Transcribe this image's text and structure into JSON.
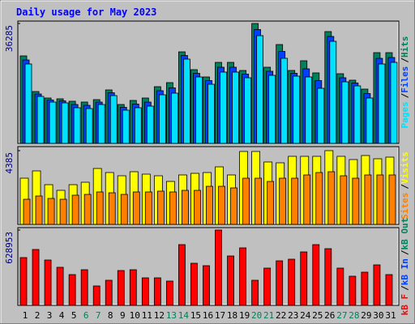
{
  "chart_data": [
    {
      "type": "bar",
      "title": "Daily usage for May 2023",
      "separator": "/",
      "ylim": [
        0,
        36285
      ],
      "yticks": [
        36285
      ],
      "series": [
        {
          "name": "Hits",
          "color": "#00805c",
          "values": [
            26478,
            15691,
            13730,
            13484,
            12749,
            12504,
            13239,
            16181,
            11768,
            12994,
            13730,
            17162,
            18388,
            27704,
            22310,
            20104,
            24517,
            24517,
            22065,
            36285,
            23046,
            29911,
            22065,
            25007,
            21330,
            33833,
            21085,
            19123,
            16426,
            27459,
            27459
          ]
        },
        {
          "name": "Files",
          "color": "#0040ff",
          "values": [
            25250,
            14950,
            13120,
            12870,
            11770,
            11520,
            12500,
            15320,
            10910,
            11890,
            12500,
            15940,
            16790,
            26600,
            21200,
            19000,
            23050,
            23050,
            20960,
            34450,
            21820,
            27830,
            21210,
            22560,
            19000,
            32360,
            19860,
            18270,
            15080,
            25740,
            25990
          ]
        },
        {
          "name": "Pages",
          "color": "#00e0ff",
          "values": [
            24027,
            14220,
            12504,
            12259,
            10787,
            10542,
            11768,
            14465,
            10052,
            10787,
            11278,
            14710,
            15201,
            25498,
            20104,
            17897,
            21575,
            21575,
            19859,
            32608,
            20594,
            25743,
            20349,
            20104,
            16672,
            30891,
            18633,
            17407,
            13730,
            24027,
            24517
          ]
        }
      ]
    },
    {
      "type": "bar",
      "separator": "/",
      "ylim": [
        0,
        4385
      ],
      "yticks": [
        4385
      ],
      "series": [
        {
          "name": "Visits",
          "color": "#ffff00",
          "values": [
            2747,
            3181,
            2361,
            2024,
            2361,
            2506,
            3325,
            3084,
            2891,
            3132,
            2988,
            2891,
            2554,
            2940,
            3036,
            3084,
            3421,
            2940,
            4337,
            4337,
            3711,
            3662,
            4048,
            4048,
            4048,
            4385,
            4048,
            3855,
            4096,
            3903,
            4000
          ]
        },
        {
          "name": "Sites",
          "color": "#ff8000",
          "values": [
            1494,
            1687,
            1542,
            1494,
            1735,
            1783,
            1928,
            1879,
            1783,
            1928,
            1928,
            1976,
            1928,
            2024,
            2024,
            2265,
            2265,
            2169,
            2747,
            2747,
            2554,
            2747,
            2747,
            2940,
            3084,
            3132,
            2891,
            2747,
            2940,
            2940,
            2940
          ]
        }
      ]
    },
    {
      "type": "bar",
      "separator": "/",
      "ylim": [
        0,
        628953
      ],
      "yticks": [
        628953
      ],
      "categories": [
        "1",
        "2",
        "3",
        "4",
        "5",
        "6",
        "7",
        "8",
        "9",
        "10",
        "11",
        "12",
        "13",
        "14",
        "15",
        "16",
        "17",
        "18",
        "19",
        "20",
        "21",
        "22",
        "23",
        "24",
        "25",
        "26",
        "27",
        "28",
        "29",
        "30",
        "31"
      ],
      "category_colors": [
        "#000000",
        "#000000",
        "#000000",
        "#000000",
        "#000000",
        "#00805c",
        "#00805c",
        "#000000",
        "#000000",
        "#000000",
        "#000000",
        "#000000",
        "#00805c",
        "#00805c",
        "#000000",
        "#000000",
        "#000000",
        "#000000",
        "#000000",
        "#00805c",
        "#00805c",
        "#000000",
        "#000000",
        "#000000",
        "#000000",
        "#000000",
        "#00805c",
        "#00805c",
        "#000000",
        "#000000",
        "#000000"
      ],
      "series": [
        {
          "name": "kB Out",
          "color": "#00805c",
          "values": [
            null,
            null,
            null,
            null,
            null,
            null,
            null,
            null,
            null,
            null,
            null,
            null,
            null,
            null,
            null,
            null,
            null,
            null,
            null,
            null,
            null,
            null,
            null,
            null,
            null,
            null,
            null,
            null,
            null,
            null,
            null
          ]
        },
        {
          "name": "kB In",
          "color": "#0040ff",
          "values": [
            null,
            null,
            null,
            null,
            null,
            null,
            null,
            null,
            null,
            null,
            null,
            null,
            null,
            null,
            null,
            null,
            null,
            null,
            null,
            null,
            null,
            null,
            null,
            null,
            null,
            null,
            null,
            null,
            null,
            null,
            null
          ]
        },
        {
          "name": "kB F",
          "color": "#ff0000",
          "values": [
            399017,
            466647,
            378728,
            317861,
            256994,
            297572,
            162312,
            209653,
            290809,
            297572,
            229942,
            229942,
            202890,
            507225,
            351676,
            331387,
            628953,
            412543,
            480173,
            209653,
            311098,
            371965,
            385491,
            446358,
            507225,
            473410,
            311098,
            243468,
            277283,
            338150,
            256994
          ]
        }
      ]
    }
  ]
}
